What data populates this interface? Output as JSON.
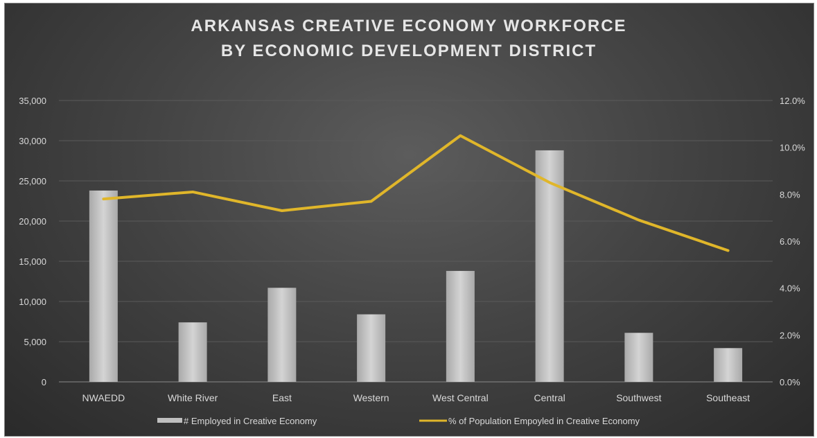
{
  "chart_data": {
    "type": "bar",
    "title": "ARKANSAS CREATIVE ECONOMY WORKFORCE",
    "subtitle": "BY ECONOMIC DEVELOPMENT DISTRICT",
    "categories": [
      "NWAEDD",
      "White River",
      "East",
      "Western",
      "West Central",
      "Central",
      "Southwest",
      "Southeast"
    ],
    "series": [
      {
        "name": "# Employed in Creative Economy",
        "type": "bar",
        "axis": "left",
        "values": [
          23800,
          7400,
          11700,
          8400,
          13800,
          28800,
          6100,
          4200
        ]
      },
      {
        "name": "% of Population Empoyled in Creative Economy",
        "type": "line",
        "axis": "right",
        "values": [
          7.8,
          8.1,
          7.3,
          7.7,
          10.5,
          8.5,
          6.9,
          5.6
        ]
      }
    ],
    "y_left": {
      "min": 0,
      "max": 35000,
      "ticks": [
        "0",
        "5,000",
        "10,000",
        "15,000",
        "20,000",
        "25,000",
        "30,000",
        "35,000"
      ]
    },
    "y_right": {
      "min": 0,
      "max": 12,
      "ticks": [
        "0.0%",
        "2.0%",
        "4.0%",
        "6.0%",
        "8.0%",
        "10.0%",
        "12.0%"
      ]
    },
    "grid": true,
    "legend_position": "bottom",
    "colors": {
      "bar": "#bfbfbf",
      "line": "#e0b62a",
      "grid": "#5a5a5a",
      "text": "#d9d9d9"
    }
  }
}
